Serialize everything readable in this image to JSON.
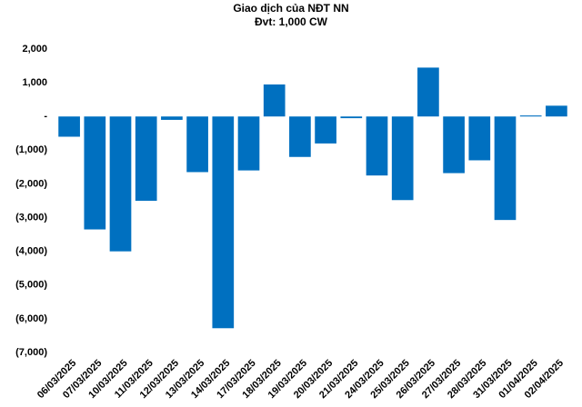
{
  "chart_data": {
    "type": "bar",
    "title": "Giao dịch của NĐT NN",
    "subtitle": "Đvt: 1,000 CW",
    "categories": [
      "06/03/2025",
      "07/03/2025",
      "10/03/2025",
      "11/03/2025",
      "12/03/2025",
      "13/03/2025",
      "14/03/2025",
      "17/03/2025",
      "18/03/2025",
      "19/03/2025",
      "20/03/2025",
      "21/03/2025",
      "24/03/2025",
      "25/03/2025",
      "26/03/2025",
      "27/03/2025",
      "28/03/2025",
      "31/03/2025",
      "01/04/2025",
      "02/04/2025"
    ],
    "values": [
      -600,
      -3350,
      -4000,
      -2500,
      -100,
      -1650,
      -6280,
      -1600,
      950,
      -1200,
      -800,
      -50,
      -1750,
      -2480,
      1450,
      -1680,
      -1300,
      -3070,
      30,
      320
    ],
    "color": "#0070c0",
    "ylim": [
      -7000,
      2000
    ],
    "yticks": [
      {
        "value": 2000,
        "label": "2,000"
      },
      {
        "value": 1000,
        "label": "1,000"
      },
      {
        "value": 0,
        "label": "-"
      },
      {
        "value": -1000,
        "label": "(1,000)"
      },
      {
        "value": -2000,
        "label": "(2,000)"
      },
      {
        "value": -3000,
        "label": "(3,000)"
      },
      {
        "value": -4000,
        "label": "(4,000)"
      },
      {
        "value": -5000,
        "label": "(5,000)"
      },
      {
        "value": -6000,
        "label": "(6,000)"
      },
      {
        "value": -7000,
        "label": "(7,000)"
      }
    ]
  }
}
